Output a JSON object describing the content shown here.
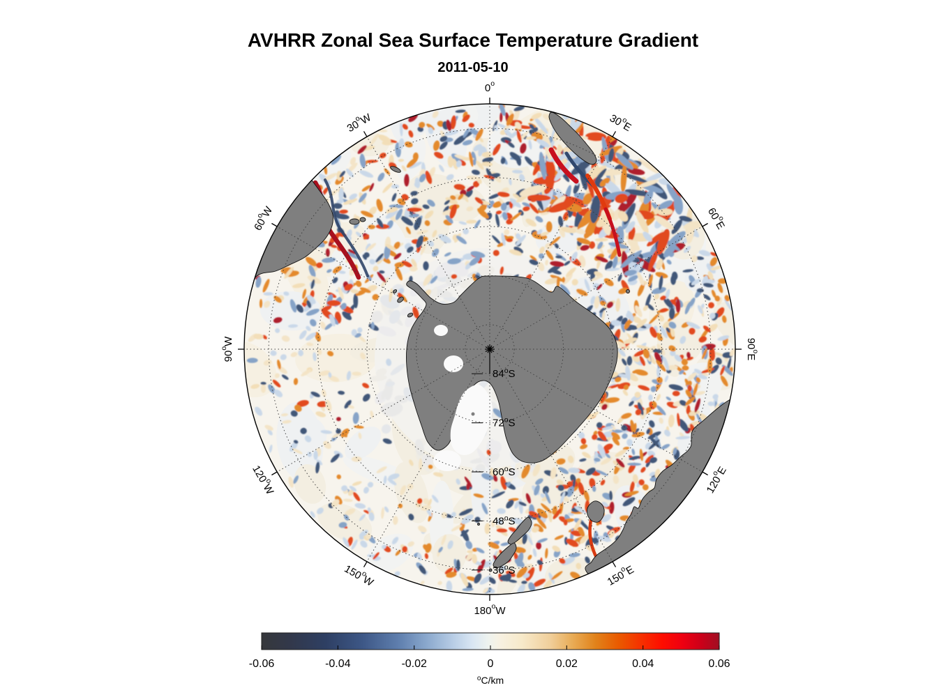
{
  "figure": {
    "title": "AVHRR Zonal Sea Surface Temperature Gradient",
    "subtitle": "2011-05-10"
  },
  "chart_data": {
    "type": "heatmap",
    "title": "AVHRR Zonal Sea Surface Temperature Gradient",
    "subtitle": "2011-05-10",
    "projection": "south-polar-stereographic-antarctica-centered",
    "lat_limits_deg": [
      -90,
      -30
    ],
    "lat_grid_labels": [
      {
        "num": "84",
        "sup": "o",
        "hemi": "S",
        "lat": -84
      },
      {
        "num": "72",
        "sup": "o",
        "hemi": "S",
        "lat": -72
      },
      {
        "num": "60",
        "sup": "o",
        "hemi": "S",
        "lat": -60
      },
      {
        "num": "48",
        "sup": "o",
        "hemi": "S",
        "lat": -48
      },
      {
        "num": "36",
        "sup": "o",
        "hemi": "S",
        "lat": -36
      }
    ],
    "lon_grid_labels": [
      {
        "num": "0",
        "sup": "o",
        "hemi": "",
        "azimuth_deg": 0
      },
      {
        "num": "30",
        "sup": "o",
        "hemi": "E",
        "azimuth_deg": 30
      },
      {
        "num": "60",
        "sup": "o",
        "hemi": "E",
        "azimuth_deg": 60
      },
      {
        "num": "90",
        "sup": "o",
        "hemi": "E",
        "azimuth_deg": 90
      },
      {
        "num": "120",
        "sup": "o",
        "hemi": "E",
        "azimuth_deg": 120
      },
      {
        "num": "150",
        "sup": "o",
        "hemi": "E",
        "azimuth_deg": 150
      },
      {
        "num": "180",
        "sup": "o",
        "hemi": "W",
        "azimuth_deg": 180
      },
      {
        "num": "150",
        "sup": "o",
        "hemi": "W",
        "azimuth_deg": 210
      },
      {
        "num": "120",
        "sup": "o",
        "hemi": "W",
        "azimuth_deg": 240
      },
      {
        "num": "90",
        "sup": "o",
        "hemi": "W",
        "azimuth_deg": 270
      },
      {
        "num": "60",
        "sup": "o",
        "hemi": "W",
        "azimuth_deg": 300
      },
      {
        "num": "30",
        "sup": "o",
        "hemi": "W",
        "azimuth_deg": 330
      }
    ],
    "colorbar": {
      "min": -0.06,
      "max": 0.06,
      "tick_labels": [
        "-0.06",
        "-0.04",
        "-0.02",
        "0",
        "0.02",
        "0.04",
        "0.06"
      ],
      "unit_sup": "o",
      "unit": "C/km",
      "gradient_stops": [
        [
          0.0,
          "#36383b"
        ],
        [
          0.06,
          "#32384a"
        ],
        [
          0.14,
          "#2e3f63"
        ],
        [
          0.22,
          "#3d5786"
        ],
        [
          0.3,
          "#5f7fae"
        ],
        [
          0.36,
          "#8aa8cd"
        ],
        [
          0.42,
          "#b9cee6"
        ],
        [
          0.46,
          "#d9e6f3"
        ],
        [
          0.495,
          "#eef3ef"
        ],
        [
          0.52,
          "#f7f1e2"
        ],
        [
          0.57,
          "#f7e9c9"
        ],
        [
          0.63,
          "#f0cf9b"
        ],
        [
          0.68,
          "#e8ab55"
        ],
        [
          0.73,
          "#e1821a"
        ],
        [
          0.78,
          "#ea5a00"
        ],
        [
          0.83,
          "#f63000"
        ],
        [
          0.875,
          "#fe0d00"
        ],
        [
          0.92,
          "#ee0011"
        ],
        [
          0.96,
          "#cc0019"
        ],
        [
          1.0,
          "#a00e22"
        ]
      ]
    },
    "land_color": "#7f7f7f",
    "coast_color": "#111111",
    "ocean_color": "#f7f4ed",
    "ice_color": "#fafafa",
    "grid_color": "#3c3c3c",
    "field_palette": {
      "strong_negative": "#31486e",
      "negative": "#7d9cc4",
      "weak_negative": "#c6d6e8",
      "weak_positive": "#f3e3c4",
      "positive": "#e2811e",
      "strong_positive": "#e03a0e",
      "extreme": "#a8101e",
      "cream": "#f2ddb4"
    }
  }
}
